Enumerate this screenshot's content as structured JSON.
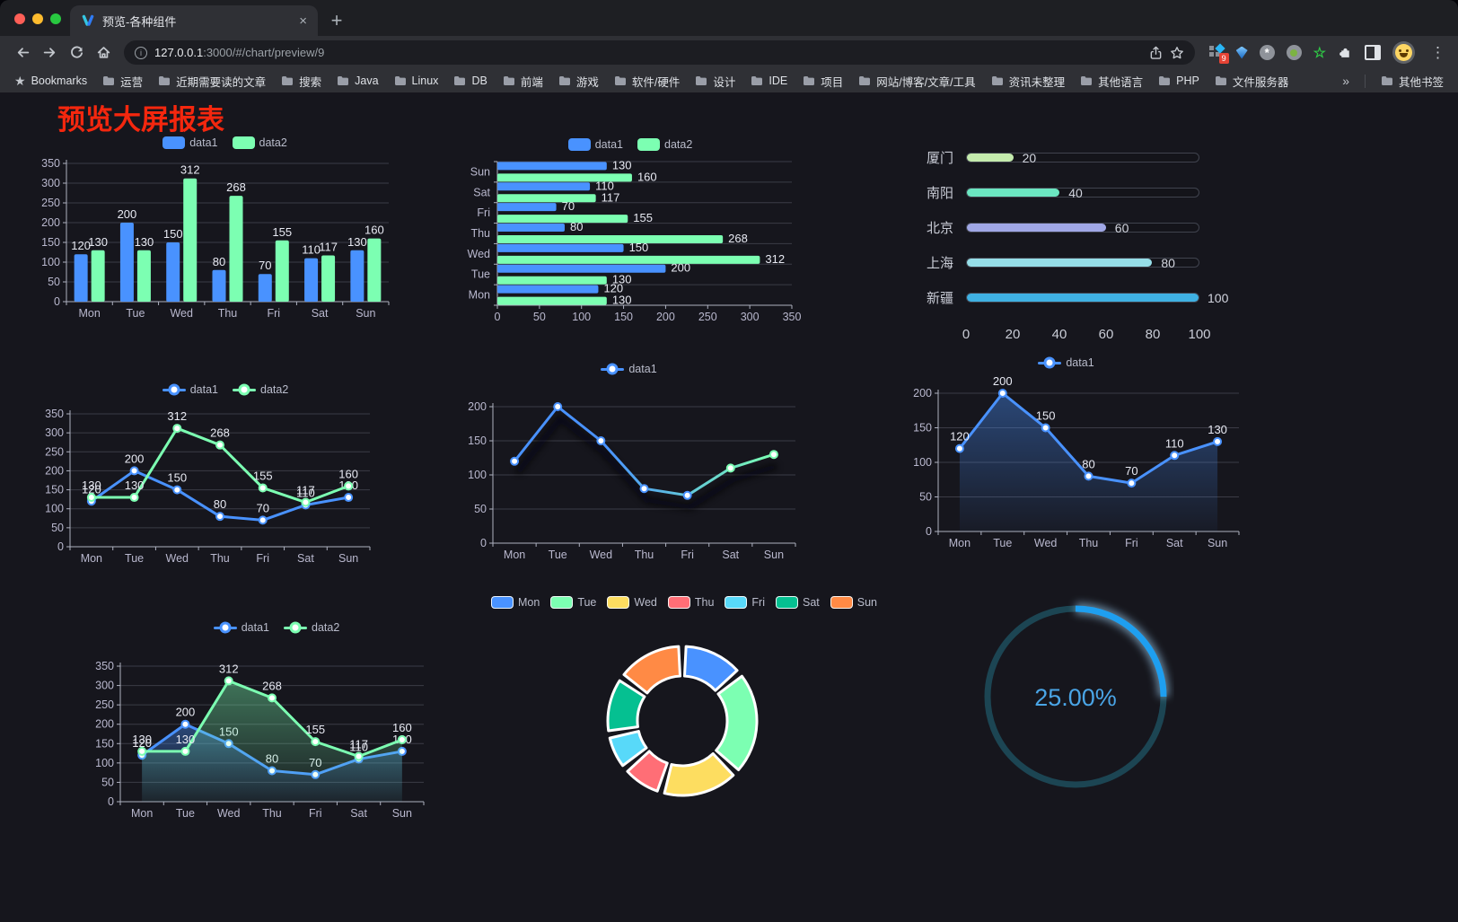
{
  "browser": {
    "tab": {
      "title": "预览-各种组件",
      "close": "×",
      "new_tab": "+"
    },
    "address": {
      "host": "127.0.0.1",
      "rest": ":3000/#/chart/preview/9"
    },
    "extensions_badge": "9",
    "bookmarks_bar": {
      "root_label": "Bookmarks",
      "folders": [
        "运营",
        "近期需要读的文章",
        "搜索",
        "Java",
        "Linux",
        "DB",
        "前端",
        "游戏",
        "软件/硬件",
        "设计",
        "IDE",
        "项目",
        "网站/博客/文章/工具",
        "资讯未整理",
        "其他语言",
        "PHP",
        "文件服务器"
      ],
      "overflow": "»",
      "other": "其他书签"
    }
  },
  "page": {
    "title": "预览大屏报表",
    "title_color": "#f4270e",
    "background": "#16161d"
  },
  "chart_data": [
    {
      "id": "bar-vertical",
      "type": "bar",
      "categories": [
        "Mon",
        "Tue",
        "Wed",
        "Thu",
        "Fri",
        "Sat",
        "Sun"
      ],
      "series": [
        {
          "name": "data1",
          "color": "#4992ff",
          "values": [
            120,
            200,
            150,
            80,
            70,
            110,
            130
          ]
        },
        {
          "name": "data2",
          "color": "#7cffb2",
          "values": [
            130,
            130,
            312,
            268,
            155,
            117,
            160
          ]
        }
      ],
      "ylim": [
        0,
        350
      ],
      "ytick": 50,
      "show_labels": true,
      "legend_position": "top"
    },
    {
      "id": "bar-horizontal",
      "type": "hbar",
      "categories": [
        "Mon",
        "Tue",
        "Wed",
        "Thu",
        "Fri",
        "Sat",
        "Sun"
      ],
      "display_order": "Sun-top",
      "series": [
        {
          "name": "data1",
          "color": "#4992ff",
          "values": [
            120,
            200,
            150,
            80,
            70,
            110,
            130
          ]
        },
        {
          "name": "data2",
          "color": "#7cffb2",
          "values": [
            130,
            130,
            312,
            268,
            155,
            117,
            160
          ]
        }
      ],
      "xlim": [
        0,
        350
      ],
      "xtick": 50,
      "show_labels": true,
      "legend_position": "top"
    },
    {
      "id": "progress-bars",
      "type": "bar-progress",
      "items": [
        {
          "label": "厦门",
          "value": 20,
          "color": "#c4ebad"
        },
        {
          "label": "南阳",
          "value": 40,
          "color": "#6be6c1"
        },
        {
          "label": "北京",
          "value": 60,
          "color": "#a0a7e6"
        },
        {
          "label": "上海",
          "value": 80,
          "color": "#96dee8"
        },
        {
          "label": "新疆",
          "value": 100,
          "color": "#3fb1e3"
        }
      ],
      "xlim": [
        0,
        100
      ],
      "xticks": [
        0,
        20,
        40,
        60,
        80,
        100
      ]
    },
    {
      "id": "line-two-series",
      "type": "line",
      "categories": [
        "Mon",
        "Tue",
        "Wed",
        "Thu",
        "Fri",
        "Sat",
        "Sun"
      ],
      "series": [
        {
          "name": "data1",
          "color": "#4992ff",
          "values": [
            120,
            200,
            150,
            80,
            70,
            110,
            130
          ]
        },
        {
          "name": "data2",
          "color": "#7cffb2",
          "values": [
            130,
            130,
            312,
            268,
            155,
            117,
            160
          ]
        }
      ],
      "ylim": [
        0,
        350
      ],
      "ytick": 50,
      "show_labels": true,
      "legend_position": "top"
    },
    {
      "id": "line-gradient",
      "type": "line",
      "categories": [
        "Mon",
        "Tue",
        "Wed",
        "Thu",
        "Fri",
        "Sat",
        "Sun"
      ],
      "series": [
        {
          "name": "data1",
          "color": "#4992ff",
          "color_end": "#7cffb2",
          "values": [
            120,
            200,
            150,
            80,
            70,
            110,
            130
          ]
        }
      ],
      "ylim": [
        0,
        200
      ],
      "ytick": 50,
      "show_labels": false,
      "shadow": true,
      "legend_position": "top"
    },
    {
      "id": "line-area-blue",
      "type": "line",
      "categories": [
        "Mon",
        "Tue",
        "Wed",
        "Thu",
        "Fri",
        "Sat",
        "Sun"
      ],
      "series": [
        {
          "name": "data1",
          "color": "#4992ff",
          "values": [
            120,
            200,
            150,
            80,
            70,
            110,
            130
          ],
          "area": true
        }
      ],
      "ylim": [
        0,
        200
      ],
      "ytick": 50,
      "show_labels": true,
      "legend_position": "top"
    },
    {
      "id": "line-two-areas",
      "type": "line",
      "categories": [
        "Mon",
        "Tue",
        "Wed",
        "Thu",
        "Fri",
        "Sat",
        "Sun"
      ],
      "series": [
        {
          "name": "data1",
          "color": "#4992ff",
          "values": [
            120,
            200,
            150,
            80,
            70,
            110,
            130
          ],
          "area": true
        },
        {
          "name": "data2",
          "color": "#7cffb2",
          "values": [
            130,
            130,
            312,
            268,
            155,
            117,
            160
          ],
          "area": true
        }
      ],
      "ylim": [
        0,
        350
      ],
      "ytick": 50,
      "show_labels": true,
      "legend_position": "top"
    },
    {
      "id": "donut",
      "type": "pie",
      "items": [
        {
          "label": "Mon",
          "value": 120,
          "color": "#4992ff"
        },
        {
          "label": "Tue",
          "value": 200,
          "color": "#7cffb2"
        },
        {
          "label": "Wed",
          "value": 150,
          "color": "#fddd60"
        },
        {
          "label": "Thu",
          "value": 80,
          "color": "#ff6e76"
        },
        {
          "label": "Fri",
          "value": 70,
          "color": "#58d9f9"
        },
        {
          "label": "Sat",
          "value": 110,
          "color": "#05c091"
        },
        {
          "label": "Sun",
          "value": 130,
          "color": "#ff8a45"
        }
      ],
      "legend_position": "top"
    },
    {
      "id": "gauge",
      "type": "gauge",
      "value": 25,
      "display": "25.00%",
      "progress_color": "#1e9ff0",
      "track_color": "#1c4553",
      "text_color": "#4aa5e6"
    }
  ]
}
